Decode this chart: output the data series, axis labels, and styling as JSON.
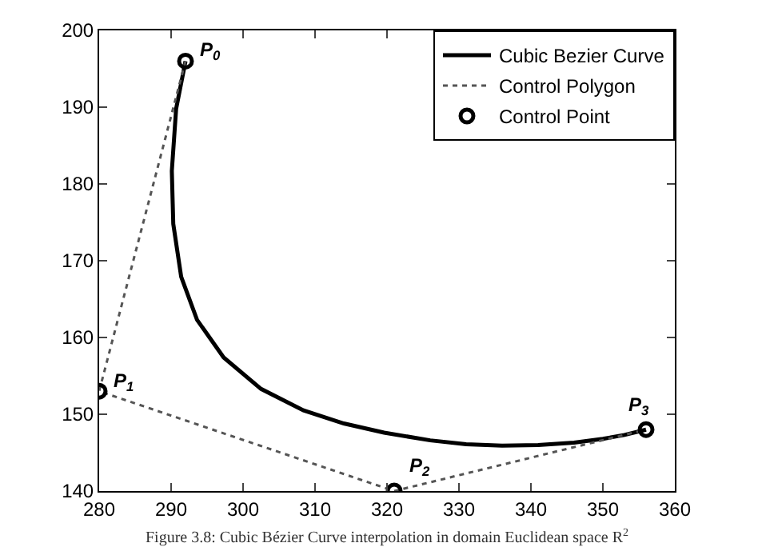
{
  "chart_data": {
    "type": "line",
    "xlim": [
      280,
      360
    ],
    "ylim": [
      140,
      200
    ],
    "xticks": [
      280,
      290,
      300,
      310,
      320,
      330,
      340,
      350,
      360
    ],
    "yticks": [
      140,
      150,
      160,
      170,
      180,
      190,
      200
    ],
    "grid": false,
    "legend": "top right",
    "series": [
      {
        "name": "Cubic Bezier Curve",
        "type": "line",
        "color": "#000000",
        "line_style": "solid",
        "marker": "none",
        "x": [
          292,
          290.7,
          290.1,
          290.3,
          291.4,
          293.6,
          297.3,
          302.5,
          308.4,
          314,
          319.6,
          326,
          331,
          336,
          341,
          346,
          350,
          353,
          356
        ],
        "values": [
          196,
          189.8,
          181.7,
          174.8,
          167.9,
          162.3,
          157.4,
          153.3,
          150.5,
          148.8,
          147.6,
          146.6,
          146.1,
          145.9,
          146,
          146.3,
          146.8,
          147.3,
          148
        ]
      },
      {
        "name": "Control Polygon",
        "type": "line",
        "color": "#555555",
        "line_style": "dotted",
        "marker": "none",
        "x": [
          292,
          280,
          321,
          356
        ],
        "values": [
          196,
          153,
          140,
          148
        ]
      },
      {
        "name": "Control Point",
        "type": "scatter",
        "color": "#000000",
        "marker": "circle",
        "x": [
          292,
          280,
          321,
          356
        ],
        "values": [
          196,
          153,
          140,
          148
        ]
      }
    ],
    "annotations": [
      {
        "text": "P$_{0}$",
        "x": 292,
        "y": 196
      },
      {
        "text": "P$_{1}$",
        "x": 280,
        "y": 153
      },
      {
        "text": "P$_{2}$",
        "x": 321,
        "y": 140
      },
      {
        "text": "P$_{3}$",
        "x": 356,
        "y": 148
      },
      "Figure 3.8: Cubic Bézier Curve interpolation in domain Euclidean space R$^{2}$"
    ]
  }
}
